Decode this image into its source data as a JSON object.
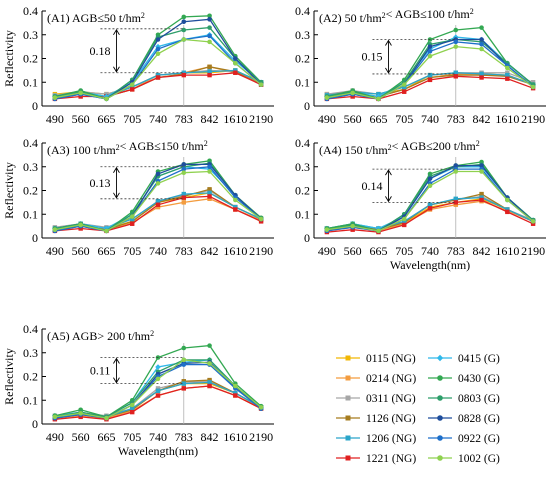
{
  "chart_data": {
    "type": "line",
    "xlabel": "Wavelength(nm)",
    "ylabel": "Reflectivity",
    "categories": [
      "490",
      "560",
      "665",
      "705",
      "740",
      "783",
      "842",
      "1610",
      "2190"
    ],
    "ylim": [
      0,
      0.4
    ],
    "yticks": [
      "0",
      "0.1",
      "0.2",
      "0.3",
      "0.4"
    ],
    "legend": [
      {
        "label": "0115 (NG)",
        "color": "#f2b705",
        "marker": "square"
      },
      {
        "label": "0214 (NG)",
        "color": "#f39c3f",
        "marker": "square"
      },
      {
        "label": "0311 (NG)",
        "color": "#a6a6a6",
        "marker": "square"
      },
      {
        "label": "1126 (NG)",
        "color": "#a67c1f",
        "marker": "square"
      },
      {
        "label": "1206 (NG)",
        "color": "#2aa5c9",
        "marker": "square"
      },
      {
        "label": "1221 (NG)",
        "color": "#e02020",
        "marker": "square"
      },
      {
        "label": "0415 (G)",
        "color": "#2fb8ea",
        "marker": "diamond"
      },
      {
        "label": "0430 (G)",
        "color": "#33a852",
        "marker": "circle"
      },
      {
        "label": "0803 (G)",
        "color": "#2e9e6a",
        "marker": "circle"
      },
      {
        "label": "0828 (G)",
        "color": "#1f4e9c",
        "marker": "circle"
      },
      {
        "label": "0922 (G)",
        "color": "#1e6fc9",
        "marker": "circle"
      },
      {
        "label": "1002 (G)",
        "color": "#8fd14f",
        "marker": "circle"
      }
    ],
    "panels": [
      {
        "title": "(A1) AGB≤50 t/hm²",
        "annotation": "0.18",
        "bracket": [
          0.14,
          0.325
        ],
        "series": [
          [
            0.05,
            0.06,
            0.05,
            0.08,
            0.13,
            0.14,
            0.14,
            0.15,
            0.1
          ],
          [
            0.04,
            0.05,
            0.04,
            0.07,
            0.13,
            0.14,
            0.165,
            0.14,
            0.1
          ],
          [
            0.045,
            0.06,
            0.05,
            0.08,
            0.13,
            0.14,
            0.15,
            0.145,
            0.1
          ],
          [
            0.035,
            0.05,
            0.04,
            0.07,
            0.12,
            0.135,
            0.165,
            0.145,
            0.09
          ],
          [
            0.04,
            0.06,
            0.04,
            0.08,
            0.13,
            0.14,
            0.145,
            0.15,
            0.1
          ],
          [
            0.03,
            0.04,
            0.04,
            0.07,
            0.12,
            0.13,
            0.13,
            0.14,
            0.09
          ],
          [
            0.04,
            0.06,
            0.04,
            0.1,
            0.25,
            0.28,
            0.3,
            0.19,
            0.1
          ],
          [
            0.04,
            0.065,
            0.03,
            0.11,
            0.3,
            0.375,
            0.38,
            0.21,
            0.1
          ],
          [
            0.04,
            0.06,
            0.03,
            0.11,
            0.29,
            0.32,
            0.33,
            0.2,
            0.1
          ],
          [
            0.03,
            0.05,
            0.03,
            0.1,
            0.28,
            0.355,
            0.365,
            0.2,
            0.09
          ],
          [
            0.03,
            0.05,
            0.03,
            0.09,
            0.24,
            0.28,
            0.295,
            0.18,
            0.09
          ],
          [
            0.035,
            0.055,
            0.03,
            0.09,
            0.22,
            0.28,
            0.27,
            0.18,
            0.09
          ]
        ]
      },
      {
        "title": "(A2) 50 t/hm²< AGB≤100 t/hm²",
        "annotation": "0.15",
        "bracket": [
          0.135,
          0.28
        ],
        "series": [
          [
            0.05,
            0.06,
            0.05,
            0.07,
            0.13,
            0.14,
            0.135,
            0.13,
            0.09
          ],
          [
            0.04,
            0.05,
            0.04,
            0.07,
            0.12,
            0.135,
            0.13,
            0.13,
            0.09
          ],
          [
            0.05,
            0.065,
            0.05,
            0.08,
            0.13,
            0.14,
            0.14,
            0.14,
            0.1
          ],
          [
            0.04,
            0.05,
            0.04,
            0.07,
            0.12,
            0.13,
            0.13,
            0.125,
            0.09
          ],
          [
            0.045,
            0.06,
            0.05,
            0.08,
            0.13,
            0.14,
            0.135,
            0.13,
            0.09
          ],
          [
            0.03,
            0.04,
            0.03,
            0.06,
            0.11,
            0.125,
            0.12,
            0.115,
            0.075
          ],
          [
            0.04,
            0.06,
            0.04,
            0.1,
            0.24,
            0.29,
            0.28,
            0.18,
            0.09
          ],
          [
            0.04,
            0.065,
            0.03,
            0.11,
            0.28,
            0.32,
            0.33,
            0.18,
            0.09
          ],
          [
            0.04,
            0.06,
            0.03,
            0.1,
            0.26,
            0.28,
            0.27,
            0.18,
            0.09
          ],
          [
            0.03,
            0.05,
            0.03,
            0.09,
            0.25,
            0.28,
            0.28,
            0.17,
            0.08
          ],
          [
            0.03,
            0.05,
            0.03,
            0.09,
            0.23,
            0.27,
            0.26,
            0.17,
            0.08
          ],
          [
            0.035,
            0.055,
            0.03,
            0.09,
            0.21,
            0.25,
            0.24,
            0.16,
            0.08
          ]
        ]
      },
      {
        "title": "(A3) 100 t/hm²< AGB≤150 t/hm²",
        "annotation": "0.13",
        "bracket": [
          0.165,
          0.3
        ],
        "series": [
          [
            0.04,
            0.06,
            0.04,
            0.07,
            0.15,
            0.17,
            0.19,
            0.13,
            0.08
          ],
          [
            0.035,
            0.05,
            0.035,
            0.065,
            0.13,
            0.15,
            0.165,
            0.12,
            0.075
          ],
          [
            0.045,
            0.06,
            0.045,
            0.08,
            0.155,
            0.18,
            0.2,
            0.13,
            0.08
          ],
          [
            0.035,
            0.05,
            0.035,
            0.07,
            0.15,
            0.175,
            0.205,
            0.13,
            0.08
          ],
          [
            0.04,
            0.06,
            0.04,
            0.08,
            0.155,
            0.185,
            0.19,
            0.13,
            0.08
          ],
          [
            0.03,
            0.04,
            0.03,
            0.06,
            0.14,
            0.17,
            0.175,
            0.12,
            0.07
          ],
          [
            0.04,
            0.06,
            0.04,
            0.1,
            0.26,
            0.3,
            0.29,
            0.18,
            0.08
          ],
          [
            0.04,
            0.06,
            0.03,
            0.11,
            0.28,
            0.31,
            0.325,
            0.18,
            0.085
          ],
          [
            0.04,
            0.06,
            0.03,
            0.1,
            0.26,
            0.3,
            0.315,
            0.18,
            0.08
          ],
          [
            0.03,
            0.05,
            0.03,
            0.09,
            0.27,
            0.31,
            0.31,
            0.18,
            0.08
          ],
          [
            0.03,
            0.05,
            0.03,
            0.09,
            0.24,
            0.29,
            0.3,
            0.17,
            0.08
          ],
          [
            0.035,
            0.055,
            0.03,
            0.09,
            0.23,
            0.275,
            0.28,
            0.16,
            0.08
          ]
        ]
      },
      {
        "title": "(A4) 150 t/hm²< AGB≤200 t/hm²",
        "annotation": "0.14",
        "bracket": [
          0.15,
          0.29
        ],
        "series": [
          [
            0.04,
            0.05,
            0.04,
            0.06,
            0.13,
            0.15,
            0.165,
            0.12,
            0.07
          ],
          [
            0.03,
            0.045,
            0.03,
            0.06,
            0.12,
            0.14,
            0.155,
            0.115,
            0.07
          ],
          [
            0.04,
            0.055,
            0.04,
            0.07,
            0.14,
            0.16,
            0.175,
            0.12,
            0.075
          ],
          [
            0.035,
            0.05,
            0.035,
            0.065,
            0.14,
            0.16,
            0.185,
            0.12,
            0.07
          ],
          [
            0.04,
            0.06,
            0.04,
            0.07,
            0.14,
            0.165,
            0.17,
            0.12,
            0.07
          ],
          [
            0.025,
            0.035,
            0.025,
            0.055,
            0.125,
            0.15,
            0.16,
            0.11,
            0.06
          ],
          [
            0.04,
            0.06,
            0.04,
            0.09,
            0.25,
            0.3,
            0.3,
            0.17,
            0.075
          ],
          [
            0.04,
            0.06,
            0.03,
            0.1,
            0.27,
            0.305,
            0.32,
            0.17,
            0.075
          ],
          [
            0.035,
            0.055,
            0.03,
            0.1,
            0.26,
            0.3,
            0.31,
            0.17,
            0.075
          ],
          [
            0.03,
            0.05,
            0.03,
            0.09,
            0.25,
            0.305,
            0.305,
            0.17,
            0.07
          ],
          [
            0.03,
            0.045,
            0.03,
            0.08,
            0.23,
            0.29,
            0.29,
            0.16,
            0.07
          ],
          [
            0.035,
            0.05,
            0.03,
            0.08,
            0.22,
            0.28,
            0.28,
            0.16,
            0.07
          ]
        ]
      },
      {
        "title": "(A5) AGB> 200 t/hm²",
        "annotation": "0.11",
        "bracket": [
          0.17,
          0.28
        ],
        "series": [
          [
            0.03,
            0.04,
            0.03,
            0.06,
            0.14,
            0.17,
            0.17,
            0.13,
            0.07
          ],
          [
            0.025,
            0.035,
            0.025,
            0.055,
            0.12,
            0.15,
            0.16,
            0.12,
            0.065
          ],
          [
            0.035,
            0.045,
            0.035,
            0.065,
            0.15,
            0.175,
            0.18,
            0.13,
            0.07
          ],
          [
            0.025,
            0.04,
            0.03,
            0.06,
            0.14,
            0.18,
            0.185,
            0.13,
            0.07
          ],
          [
            0.03,
            0.045,
            0.03,
            0.065,
            0.14,
            0.17,
            0.175,
            0.13,
            0.07
          ],
          [
            0.02,
            0.03,
            0.02,
            0.05,
            0.12,
            0.15,
            0.16,
            0.12,
            0.065
          ],
          [
            0.035,
            0.05,
            0.03,
            0.09,
            0.24,
            0.26,
            0.27,
            0.16,
            0.07
          ],
          [
            0.035,
            0.06,
            0.03,
            0.1,
            0.28,
            0.32,
            0.33,
            0.17,
            0.075
          ],
          [
            0.03,
            0.05,
            0.03,
            0.09,
            0.22,
            0.27,
            0.27,
            0.16,
            0.07
          ],
          [
            0.025,
            0.04,
            0.025,
            0.08,
            0.21,
            0.255,
            0.26,
            0.155,
            0.065
          ],
          [
            0.025,
            0.04,
            0.025,
            0.08,
            0.2,
            0.25,
            0.25,
            0.15,
            0.065
          ],
          [
            0.03,
            0.045,
            0.025,
            0.08,
            0.19,
            0.27,
            0.255,
            0.16,
            0.07
          ]
        ]
      }
    ]
  }
}
